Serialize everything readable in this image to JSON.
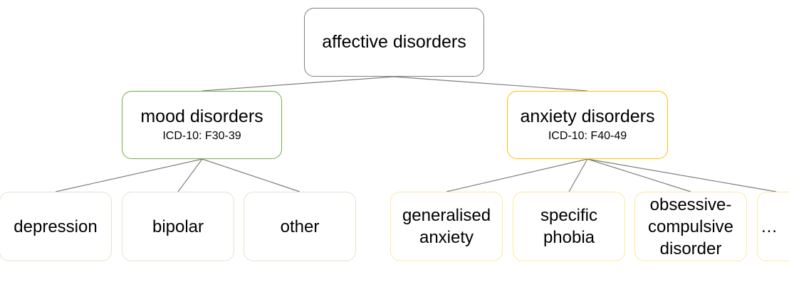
{
  "root": {
    "title": "affective disorders"
  },
  "mood": {
    "title": "mood disorders",
    "code": "ICD-10: F30-39"
  },
  "anxiety": {
    "title": "anxiety disorders",
    "code": "ICD-10: F40-49"
  },
  "mood_children": [
    "depression",
    "bipolar",
    "other"
  ],
  "anxiety_children": [
    "generalised anxiety",
    "specific phobia",
    "obsessive-compulsive disorder",
    "…"
  ],
  "colors": {
    "root_border": "#7f7f7f",
    "mood_border": "#70ad47",
    "mood_leaf_border": "#d9e9cc",
    "anxiety_border": "#ffc000",
    "anxiety_leaf_border": "#ffe89f",
    "connector": "#7f7f7f"
  }
}
